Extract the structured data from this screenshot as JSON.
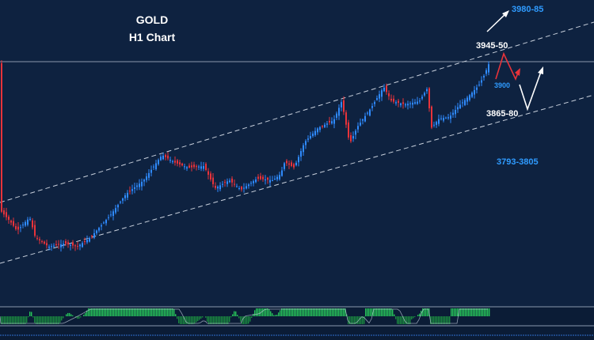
{
  "chart_data": {
    "type": "candlestick",
    "title": "GOLD",
    "subtitle": "H1 Chart",
    "annotations": {
      "target_up": "3980-85",
      "resistance": "3945-50",
      "pullback": "3900",
      "support": "3865-80",
      "lower_support": "3793-3805"
    },
    "channel": "ascending",
    "indicator_panel": "momentum histogram",
    "colors": {
      "background": "#0e2240",
      "bull": "#2f8bff",
      "bear": "#e8333a",
      "channel": "#c8d0dc",
      "histogram": "#27c45a"
    }
  }
}
